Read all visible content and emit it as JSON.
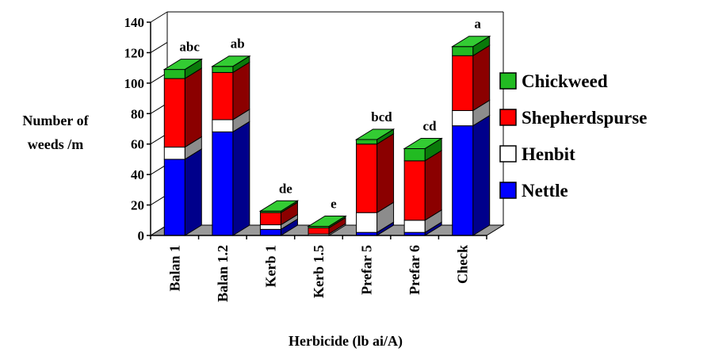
{
  "chart_data": {
    "type": "bar",
    "stacked": true,
    "three_d": true,
    "title": "",
    "xlabel": "Herbicide (lb ai/A)",
    "ylabel_lines": [
      "Number of",
      "weeds /m"
    ],
    "ylim": [
      0,
      140
    ],
    "yticks": [
      0,
      20,
      40,
      60,
      80,
      100,
      120,
      140
    ],
    "grid": false,
    "legend_position": "right",
    "categories": [
      "Balan 1",
      "Balan 1.2",
      "Kerb 1",
      "Kerb 1.5",
      "Prefar 5",
      "Prefar 6",
      "Check"
    ],
    "annotations": [
      "abc",
      "ab",
      "de",
      "e",
      "bcd",
      "cd",
      "a"
    ],
    "series": [
      {
        "name": "Nettle",
        "values": [
          50,
          68,
          4,
          0,
          2,
          2,
          72
        ]
      },
      {
        "name": "Henbit",
        "values": [
          8,
          8,
          3,
          1,
          13,
          8,
          10
        ]
      },
      {
        "name": "Shepherdspurse",
        "values": [
          45,
          31,
          8,
          4,
          45,
          39,
          36
        ]
      },
      {
        "name": "Chickweed",
        "values": [
          6,
          4,
          1,
          1,
          3,
          8,
          6
        ]
      }
    ],
    "legend_order": [
      "Chickweed",
      "Shepherdspurse",
      "Henbit",
      "Nettle"
    ],
    "colors": {
      "Nettle": {
        "front": "#0000ff",
        "side": "#00008b",
        "top": "#4040ff"
      },
      "Henbit": {
        "front": "#ffffff",
        "side": "#8c8c8c",
        "top": "#e8e8e8"
      },
      "Shepherdspurse": {
        "front": "#ff0000",
        "side": "#8b0000",
        "top": "#ff5050"
      },
      "Chickweed": {
        "front": "#22bb22",
        "side": "#0a7a0a",
        "top": "#33cc33"
      },
      "floor": "#9a9a9a"
    }
  }
}
